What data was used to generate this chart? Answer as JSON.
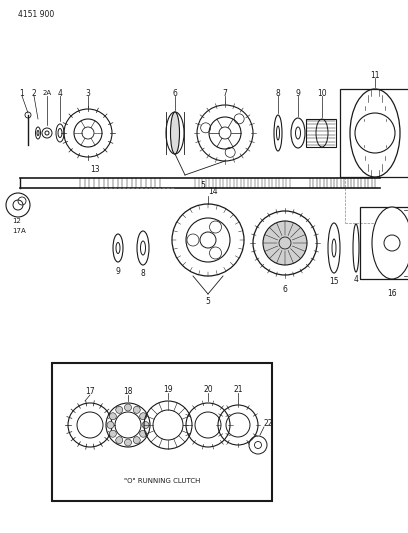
{
  "title_code": "4151 900",
  "bg_color": "#ffffff",
  "line_color": "#1a1a1a",
  "inset_label": "\"O\" RUNNING CLUTCH"
}
